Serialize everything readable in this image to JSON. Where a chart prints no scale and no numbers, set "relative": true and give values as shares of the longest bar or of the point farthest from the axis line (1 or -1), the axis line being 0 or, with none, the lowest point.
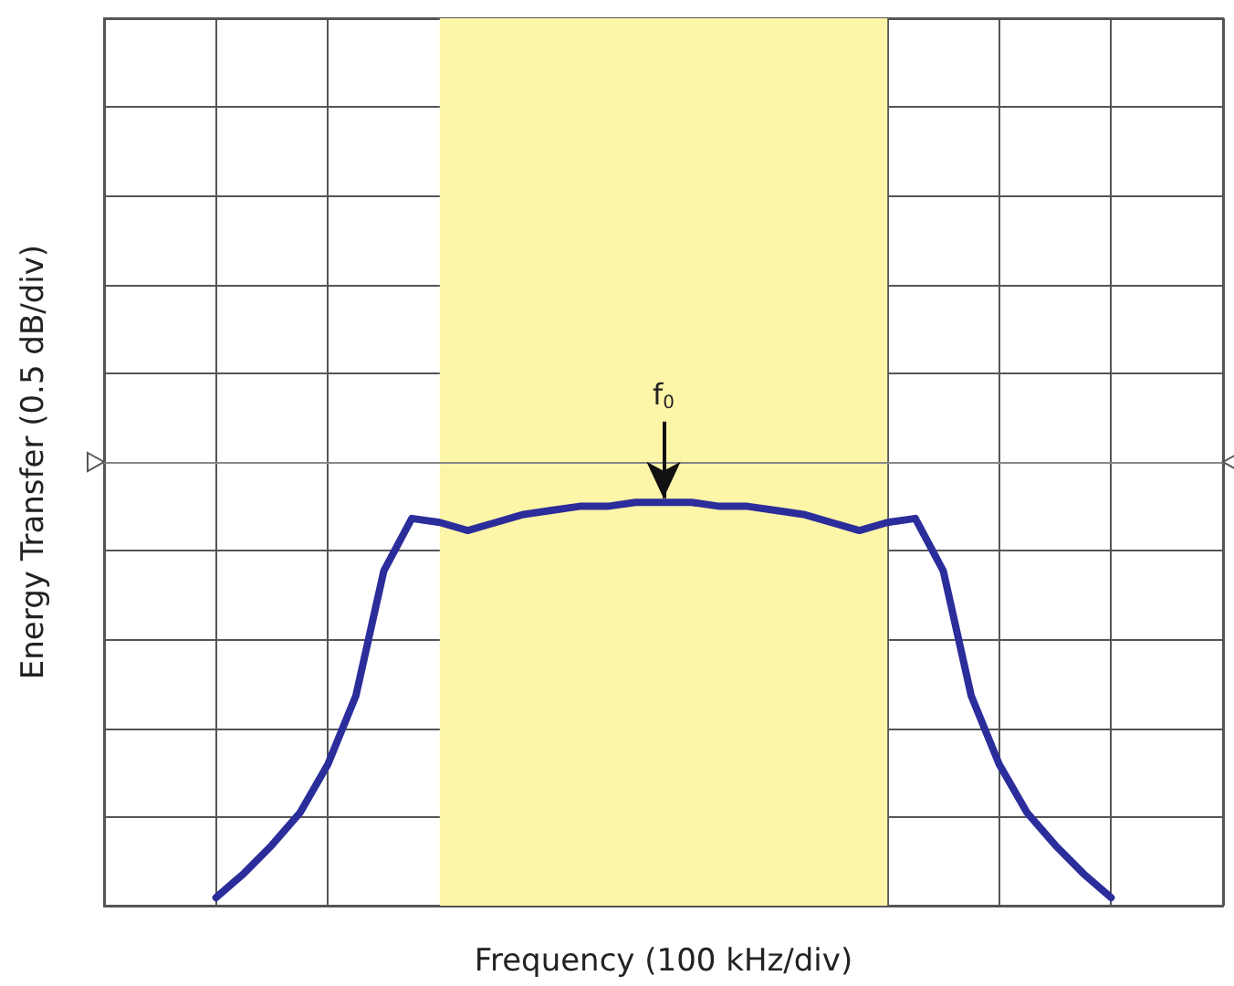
{
  "chart_data": {
    "type": "line",
    "xlabel": "Frequency (100 kHz/div)",
    "ylabel": "Energy Transfer (0.5 dB/div)",
    "relative": true,
    "grid": true,
    "marker": "none",
    "line_style": "solid",
    "categories": [
      null,
      null,
      null,
      null,
      null,
      null,
      null,
      null,
      null,
      null,
      null,
      null,
      null,
      null,
      null,
      null,
      null,
      null,
      null,
      null,
      null,
      null,
      null,
      null,
      null,
      null,
      null,
      null,
      null,
      null,
      null,
      null,
      null,
      null,
      null,
      null,
      null,
      null,
      null,
      null,
      null
    ],
    "series": [
      {
        "color": "#2b2d9b",
        "values": [
          null,
          null,
          null,
          null,
          0.02,
          0.08,
          0.15,
          0.23,
          0.35,
          0.52,
          0.83,
          0.96,
          0.95,
          0.93,
          0.95,
          0.97,
          0.98,
          0.99,
          0.99,
          1,
          1,
          1,
          0.99,
          0.99,
          0.98,
          0.97,
          0.95,
          0.93,
          0.95,
          0.96,
          0.83,
          0.52,
          0.35,
          0.23,
          0.15,
          0.08,
          0.02,
          null,
          null,
          null,
          null
        ]
      }
    ],
    "ref_lines": [
      {
        "axis": "y",
        "value": 1.1,
        "color": "#888888"
      }
    ],
    "annotations": [
      "f$_{0}$"
    ]
  }
}
